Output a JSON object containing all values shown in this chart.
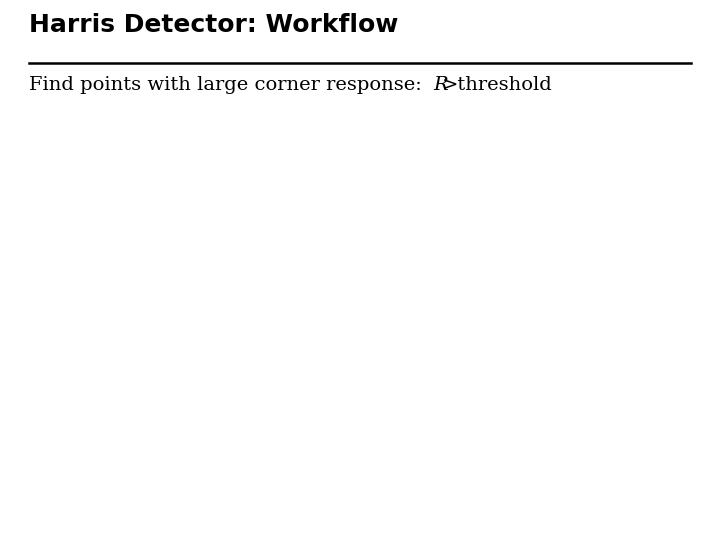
{
  "title": "Harris Detector: Workflow",
  "subtitle_plain": "Find points with large corner response: ",
  "subtitle_italic": "R",
  "subtitle_rest": ">threshold",
  "title_fontsize": 18,
  "subtitle_fontsize": 14,
  "title_color": "#000000",
  "subtitle_color": "#000000",
  "background_color": "#ffffff",
  "image_bg": "#000000",
  "fig_width": 7.2,
  "fig_height": 5.4,
  "seed": 42,
  "blobs": [
    [
      0.09,
      0.88,
      0.035,
      0.035,
      0
    ],
    [
      0.1,
      0.8,
      0.025,
      0.025,
      0
    ],
    [
      0.13,
      0.63,
      0.03,
      0.055,
      0
    ],
    [
      0.1,
      0.56,
      0.04,
      0.03,
      0
    ],
    [
      0.08,
      0.49,
      0.05,
      0.04,
      0
    ],
    [
      0.1,
      0.41,
      0.04,
      0.065,
      0
    ],
    [
      0.09,
      0.31,
      0.055,
      0.04,
      0
    ],
    [
      0.07,
      0.23,
      0.05,
      0.035,
      0
    ],
    [
      0.05,
      0.17,
      0.055,
      0.04,
      0
    ],
    [
      0.06,
      0.11,
      0.04,
      0.035,
      0
    ],
    [
      0.08,
      0.05,
      0.035,
      0.025,
      0
    ],
    [
      0.16,
      0.74,
      0.025,
      0.035,
      0
    ],
    [
      0.18,
      0.66,
      0.035,
      0.035,
      0
    ],
    [
      0.2,
      0.58,
      0.025,
      0.025,
      0
    ],
    [
      0.17,
      0.46,
      0.035,
      0.025,
      0
    ],
    [
      0.14,
      0.36,
      0.025,
      0.035,
      0
    ],
    [
      0.22,
      0.82,
      0.03,
      0.03,
      0
    ],
    [
      0.25,
      0.73,
      0.025,
      0.04,
      0
    ],
    [
      0.27,
      0.65,
      0.035,
      0.055,
      0
    ],
    [
      0.28,
      0.74,
      0.05,
      0.085,
      10
    ],
    [
      0.26,
      0.58,
      0.05,
      0.04,
      0
    ],
    [
      0.24,
      0.5,
      0.055,
      0.04,
      0
    ],
    [
      0.22,
      0.43,
      0.065,
      0.05,
      0
    ],
    [
      0.24,
      0.34,
      0.05,
      0.06,
      0
    ],
    [
      0.25,
      0.25,
      0.04,
      0.04,
      0
    ],
    [
      0.26,
      0.17,
      0.035,
      0.05,
      0
    ],
    [
      0.26,
      0.08,
      0.025,
      0.035,
      0
    ],
    [
      0.2,
      0.04,
      0.025,
      0.018,
      0
    ],
    [
      0.33,
      0.71,
      0.025,
      0.025,
      0
    ],
    [
      0.35,
      0.63,
      0.035,
      0.025,
      0
    ],
    [
      0.37,
      0.51,
      0.025,
      0.035,
      0
    ],
    [
      0.38,
      0.41,
      0.035,
      0.025,
      0
    ],
    [
      0.36,
      0.31,
      0.025,
      0.025,
      0
    ],
    [
      0.4,
      0.24,
      0.02,
      0.02,
      0
    ],
    [
      0.3,
      0.45,
      0.025,
      0.03,
      0
    ],
    [
      0.32,
      0.53,
      0.03,
      0.025,
      0
    ],
    [
      0.55,
      0.93,
      0.025,
      0.025,
      0
    ],
    [
      0.57,
      0.87,
      0.025,
      0.025,
      0
    ],
    [
      0.58,
      0.79,
      0.03,
      0.03,
      0
    ],
    [
      0.57,
      0.72,
      0.025,
      0.025,
      0
    ],
    [
      0.59,
      0.65,
      0.025,
      0.03,
      0
    ],
    [
      0.58,
      0.57,
      0.04,
      0.04,
      0
    ],
    [
      0.59,
      0.49,
      0.05,
      0.04,
      0
    ],
    [
      0.6,
      0.41,
      0.045,
      0.05,
      0
    ],
    [
      0.59,
      0.33,
      0.055,
      0.04,
      0
    ],
    [
      0.57,
      0.24,
      0.045,
      0.035,
      0
    ],
    [
      0.56,
      0.16,
      0.04,
      0.04,
      0
    ],
    [
      0.57,
      0.09,
      0.04,
      0.03,
      0
    ],
    [
      0.64,
      0.73,
      0.025,
      0.035,
      0
    ],
    [
      0.66,
      0.64,
      0.035,
      0.025,
      0
    ],
    [
      0.65,
      0.56,
      0.025,
      0.035,
      0
    ],
    [
      0.63,
      0.47,
      0.035,
      0.025,
      0
    ],
    [
      0.62,
      0.39,
      0.03,
      0.03,
      0
    ],
    [
      0.69,
      0.5,
      0.025,
      0.03,
      0
    ],
    [
      0.68,
      0.6,
      0.03,
      0.025,
      0
    ],
    [
      0.7,
      0.88,
      0.035,
      0.035,
      0
    ],
    [
      0.72,
      0.81,
      0.035,
      0.035,
      0
    ],
    [
      0.71,
      0.73,
      0.05,
      0.04,
      0
    ],
    [
      0.73,
      0.66,
      0.06,
      0.05,
      0
    ],
    [
      0.75,
      0.57,
      0.065,
      0.05,
      0
    ],
    [
      0.76,
      0.49,
      0.06,
      0.05,
      0
    ],
    [
      0.78,
      0.43,
      0.05,
      0.04,
      0
    ],
    [
      0.8,
      0.37,
      0.04,
      0.04,
      0
    ],
    [
      0.84,
      0.35,
      0.075,
      0.035,
      0
    ],
    [
      0.88,
      0.31,
      0.06,
      0.035,
      0
    ],
    [
      0.75,
      0.28,
      0.05,
      0.04,
      0
    ],
    [
      0.73,
      0.19,
      0.05,
      0.04,
      0
    ],
    [
      0.71,
      0.11,
      0.04,
      0.035,
      0
    ],
    [
      0.7,
      0.05,
      0.035,
      0.025,
      0
    ],
    [
      0.8,
      0.71,
      0.025,
      0.025,
      0
    ],
    [
      0.82,
      0.64,
      0.035,
      0.035,
      0
    ],
    [
      0.83,
      0.56,
      0.025,
      0.025,
      0
    ],
    [
      0.85,
      0.48,
      0.025,
      0.025,
      0
    ],
    [
      0.87,
      0.42,
      0.03,
      0.025,
      0
    ],
    [
      0.9,
      0.38,
      0.035,
      0.03,
      0
    ],
    [
      0.93,
      0.34,
      0.03,
      0.025,
      0
    ],
    [
      0.45,
      0.86,
      0.035,
      0.035,
      0
    ],
    [
      0.42,
      0.76,
      0.025,
      0.035,
      0
    ],
    [
      0.44,
      0.61,
      0.035,
      0.025,
      0
    ],
    [
      0.47,
      0.7,
      0.025,
      0.025,
      0
    ],
    [
      0.48,
      0.52,
      0.02,
      0.02,
      0
    ]
  ]
}
